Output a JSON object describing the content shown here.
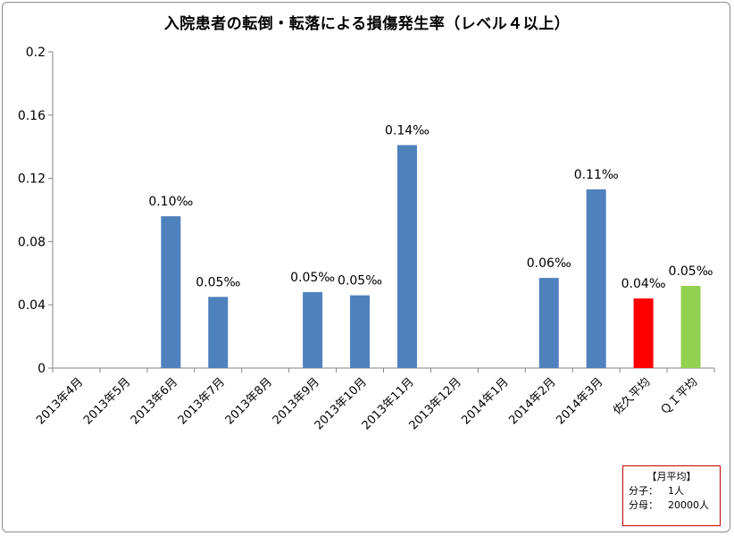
{
  "chart_data": {
    "type": "bar",
    "title": "入院患者の転倒・転落による損傷発生率（レベル４以上）",
    "categories": [
      "2013年4月",
      "2013年5月",
      "2013年6月",
      "2013年7月",
      "2013年8月",
      "2013年9月",
      "2013年10月",
      "2013年11月",
      "2013年12月",
      "2014年1月",
      "2014年2月",
      "2014年3月",
      "佐久平均",
      "ＱＩ平均"
    ],
    "values": [
      0,
      0,
      0.096,
      0.045,
      0,
      0.048,
      0.046,
      0.141,
      0,
      0,
      0.057,
      0.113,
      0.044,
      0.052
    ],
    "data_labels": [
      "",
      "",
      "0.10‰",
      "0.05‰",
      "",
      "0.05‰",
      "0.05‰",
      "0.14‰",
      "",
      "",
      "0.06‰",
      "0.11‰",
      "0.04‰",
      "0.05‰"
    ],
    "bar_colors": [
      "#4f81bd",
      "#4f81bd",
      "#4f81bd",
      "#4f81bd",
      "#4f81bd",
      "#4f81bd",
      "#4f81bd",
      "#4f81bd",
      "#4f81bd",
      "#4f81bd",
      "#4f81bd",
      "#4f81bd",
      "#ff0000",
      "#92d050"
    ],
    "yticks": [
      "0",
      "0.04",
      "0.08",
      "0.12",
      "0.16",
      "0.2"
    ],
    "ylim": [
      0,
      0.2
    ],
    "grid": false,
    "legend": "none"
  },
  "note": {
    "title": "【月平均】",
    "rows": [
      {
        "label": "分子：",
        "value": "1人"
      },
      {
        "label": "分母：",
        "value": "20000人"
      }
    ]
  }
}
